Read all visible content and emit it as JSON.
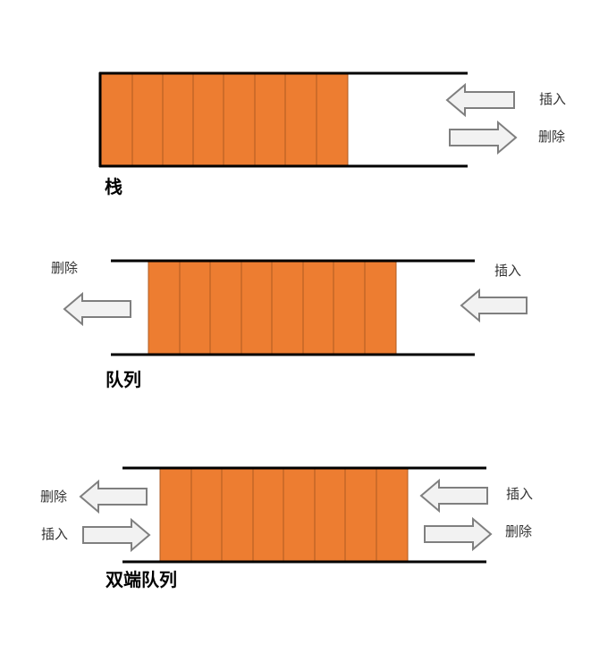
{
  "stack": {
    "title": "栈",
    "cells": 8,
    "ops": [
      {
        "label": "插入",
        "direction": "left"
      },
      {
        "label": "删除",
        "direction": "right"
      }
    ]
  },
  "queue": {
    "title": "队列",
    "cells": 8,
    "ops": [
      {
        "label": "删除",
        "direction": "left"
      },
      {
        "label": "插入",
        "direction": "left"
      }
    ]
  },
  "deque": {
    "title": "双端队列",
    "cells": 8,
    "ops": [
      {
        "label": "删除",
        "direction": "left"
      },
      {
        "label": "插入",
        "direction": "right"
      },
      {
        "label": "插入",
        "direction": "left"
      },
      {
        "label": "删除",
        "direction": "right"
      }
    ]
  },
  "colors": {
    "cell_fill": "#ED7D31",
    "cell_border": "#AE5A21",
    "rail": "#000000",
    "arrow_fill": "#F2F2F2",
    "arrow_stroke": "#7F7F7F"
  }
}
